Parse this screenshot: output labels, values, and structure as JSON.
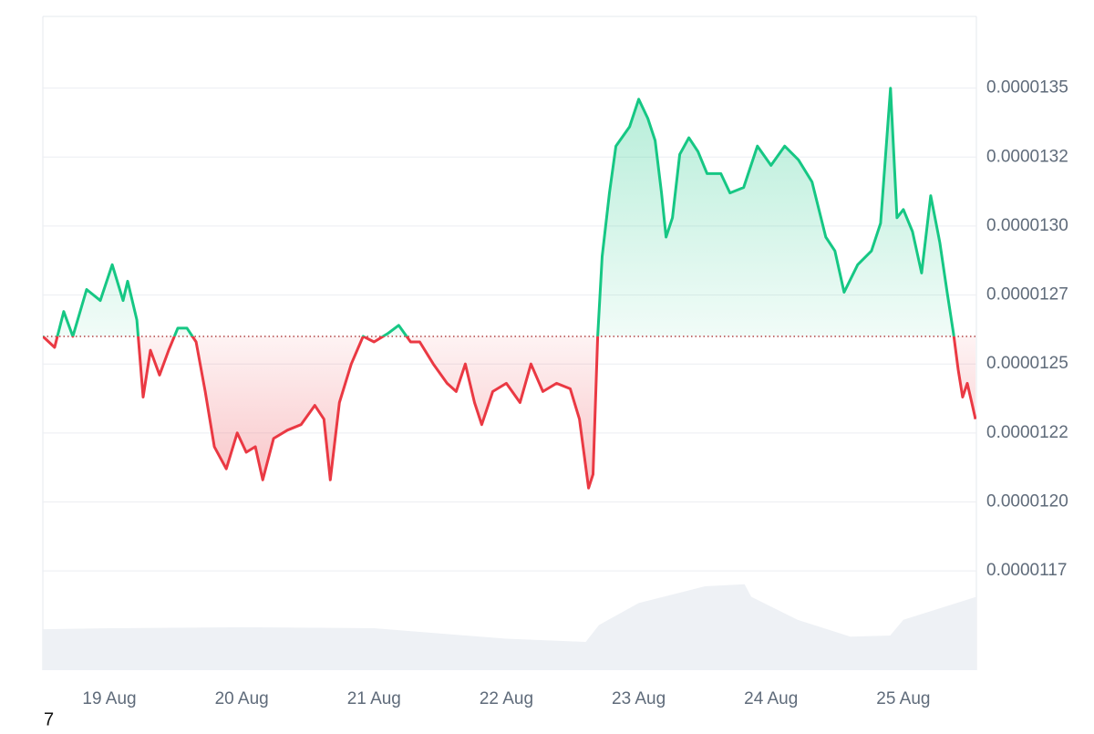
{
  "chart_data": {
    "type": "price-line",
    "x": [
      18.497,
      18.586,
      18.655,
      18.724,
      18.828,
      18.931,
      19.021,
      19.103,
      19.138,
      19.207,
      19.255,
      19.31,
      19.379,
      19.448,
      19.517,
      19.586,
      19.655,
      19.724,
      19.793,
      19.883,
      19.966,
      20.034,
      20.103,
      20.159,
      20.241,
      20.345,
      20.448,
      20.552,
      20.621,
      20.669,
      20.738,
      20.828,
      20.917,
      21.0,
      21.103,
      21.186,
      21.276,
      21.345,
      21.448,
      21.552,
      21.621,
      21.69,
      21.759,
      21.814,
      21.897,
      22.0,
      22.103,
      22.186,
      22.276,
      22.379,
      22.483,
      22.552,
      22.621,
      22.655,
      22.69,
      22.724,
      22.779,
      22.828,
      22.931,
      23.0,
      23.069,
      23.124,
      23.172,
      23.207,
      23.255,
      23.31,
      23.379,
      23.448,
      23.517,
      23.621,
      23.69,
      23.793,
      23.897,
      24.0,
      24.103,
      24.207,
      24.31,
      24.414,
      24.483,
      24.552,
      24.655,
      24.759,
      24.828,
      24.903,
      24.952,
      25.0,
      25.069,
      25.138,
      25.207,
      25.276,
      25.331,
      25.379,
      25.414,
      25.448,
      25.483,
      25.517,
      25.545
    ],
    "values": [
      1.26e-05,
      1.256e-05,
      1.269e-05,
      1.26e-05,
      1.277e-05,
      1.273e-05,
      1.286e-05,
      1.273e-05,
      1.28e-05,
      1.266e-05,
      1.238e-05,
      1.255e-05,
      1.246e-05,
      1.255e-05,
      1.263e-05,
      1.263e-05,
      1.258e-05,
      1.24e-05,
      1.22e-05,
      1.212e-05,
      1.225e-05,
      1.218e-05,
      1.22e-05,
      1.208e-05,
      1.223e-05,
      1.226e-05,
      1.228e-05,
      1.235e-05,
      1.23e-05,
      1.208e-05,
      1.236e-05,
      1.25e-05,
      1.26e-05,
      1.258e-05,
      1.261e-05,
      1.264e-05,
      1.258e-05,
      1.258e-05,
      1.25e-05,
      1.243e-05,
      1.24e-05,
      1.25e-05,
      1.236e-05,
      1.228e-05,
      1.24e-05,
      1.243e-05,
      1.236e-05,
      1.25e-05,
      1.24e-05,
      1.243e-05,
      1.241e-05,
      1.23e-05,
      1.205e-05,
      1.21e-05,
      1.26e-05,
      1.289e-05,
      1.312e-05,
      1.329e-05,
      1.336e-05,
      1.346e-05,
      1.339e-05,
      1.331e-05,
      1.312e-05,
      1.296e-05,
      1.303e-05,
      1.326e-05,
      1.332e-05,
      1.327e-05,
      1.319e-05,
      1.319e-05,
      1.312e-05,
      1.314e-05,
      1.329e-05,
      1.322e-05,
      1.329e-05,
      1.324e-05,
      1.316e-05,
      1.296e-05,
      1.291e-05,
      1.276e-05,
      1.286e-05,
      1.291e-05,
      1.301e-05,
      1.35e-05,
      1.303e-05,
      1.306e-05,
      1.298e-05,
      1.283e-05,
      1.311e-05,
      1.294e-05,
      1.276e-05,
      1.261e-05,
      1.248e-05,
      1.238e-05,
      1.243e-05,
      1.236e-05,
      1.23e-05
    ],
    "baseline": 1.26e-05,
    "up_color": "#16c784",
    "down_color": "#ea3943",
    "xlim": [
      18.497,
      25.552
    ],
    "ylim": [
      1.139e-05,
      1.376e-05
    ],
    "xticks": [
      {
        "value": 19,
        "label": "19 Aug"
      },
      {
        "value": 20,
        "label": "20 Aug"
      },
      {
        "value": 21,
        "label": "21 Aug"
      },
      {
        "value": 22,
        "label": "22 Aug"
      },
      {
        "value": 23,
        "label": "23 Aug"
      },
      {
        "value": 24,
        "label": "24 Aug"
      },
      {
        "value": 25,
        "label": "25 Aug"
      }
    ],
    "yticks": [
      {
        "value": 1.35e-05,
        "label": "0.0000135"
      },
      {
        "value": 1.325e-05,
        "label": "0.0000132"
      },
      {
        "value": 1.3e-05,
        "label": "0.0000130"
      },
      {
        "value": 1.275e-05,
        "label": "0.0000127"
      },
      {
        "value": 1.25e-05,
        "label": "0.0000125"
      },
      {
        "value": 1.225e-05,
        "label": "0.0000122"
      },
      {
        "value": 1.2e-05,
        "label": "0.0000120"
      },
      {
        "value": 1.175e-05,
        "label": "0.0000117"
      }
    ],
    "grid": true,
    "volume": {
      "color": "#eef1f5",
      "x": [
        18.497,
        19,
        20,
        21,
        22,
        22.6,
        22.7,
        23,
        23.5,
        23.8,
        23.85,
        24.2,
        24.6,
        24.9,
        25.0,
        25.2,
        25.552
      ],
      "values": [
        39,
        40,
        41,
        40,
        30,
        27,
        43,
        64,
        80,
        82,
        70,
        48,
        32,
        33,
        48,
        56,
        70
      ]
    },
    "y2lim": [
      0,
      100
    ],
    "footnote": "7"
  }
}
